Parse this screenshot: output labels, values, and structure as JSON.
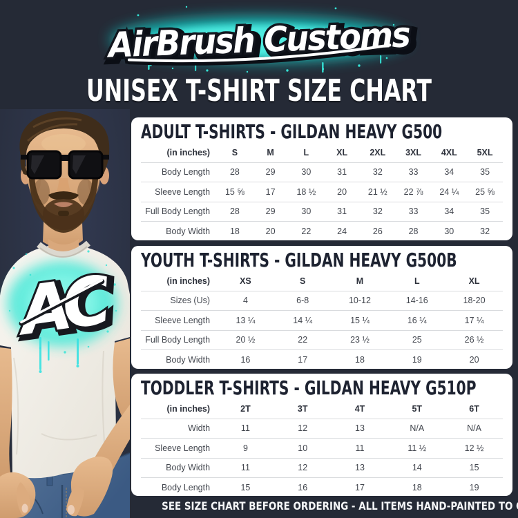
{
  "theme": {
    "bg": "#252a36",
    "panel": "#ffffff",
    "ink": "#1d2230",
    "accent": "#2fe4d0"
  },
  "brand": {
    "logo_text": "AirBrush Customs"
  },
  "title": "UNISEX T-SHIRT SIZE CHART",
  "tables": [
    {
      "title": "ADULT T-SHIRTS - GILDAN HEAVY G500",
      "unit_label": "(in inches)",
      "columns": [
        "S",
        "M",
        "L",
        "XL",
        "2XL",
        "3XL",
        "4XL",
        "5XL"
      ],
      "rows": [
        {
          "label": "Body Length",
          "values": [
            "28",
            "29",
            "30",
            "31",
            "32",
            "33",
            "34",
            "35"
          ]
        },
        {
          "label": "Sleeve Length",
          "values": [
            "15 ⅝",
            "17",
            "18 ½",
            "20",
            "21 ½",
            "22 ⅞",
            "24 ¼",
            "25 ⅝"
          ]
        },
        {
          "label": "Full Body Length",
          "values": [
            "28",
            "29",
            "30",
            "31",
            "32",
            "33",
            "34",
            "35"
          ]
        },
        {
          "label": "Body Width",
          "values": [
            "18",
            "20",
            "22",
            "24",
            "26",
            "28",
            "30",
            "32"
          ]
        }
      ]
    },
    {
      "title": "YOUTH T-SHIRTS - GILDAN HEAVY G500B",
      "unit_label": "(in inches)",
      "columns": [
        "XS",
        "S",
        "M",
        "L",
        "XL"
      ],
      "rows": [
        {
          "label": "Sizes (Us)",
          "values": [
            "4",
            "6-8",
            "10-12",
            "14-16",
            "18-20"
          ]
        },
        {
          "label": "Sleeve Length",
          "values": [
            "13 ¼",
            "14 ¼",
            "15 ¼",
            "16 ¼",
            "17 ¼"
          ]
        },
        {
          "label": "Full Body Length",
          "values": [
            "20 ½",
            "22",
            "23 ½",
            "25",
            "26 ½"
          ]
        },
        {
          "label": "Body Width",
          "values": [
            "16",
            "17",
            "18",
            "19",
            "20"
          ]
        }
      ]
    },
    {
      "title": "TODDLER T-SHIRTS - GILDAN HEAVY G510P",
      "unit_label": "(in inches)",
      "columns": [
        "2T",
        "3T",
        "4T",
        "5T",
        "6T"
      ],
      "rows": [
        {
          "label": "Width",
          "values": [
            "11",
            "12",
            "13",
            "N/A",
            "N/A"
          ]
        },
        {
          "label": "Sleeve Length",
          "values": [
            "9",
            "10",
            "11",
            "11 ½",
            "12 ½"
          ]
        },
        {
          "label": "Body Width",
          "values": [
            "11",
            "12",
            "13",
            "14",
            "15"
          ]
        },
        {
          "label": "Body Length",
          "values": [
            "15",
            "16",
            "17",
            "18",
            "19"
          ]
        }
      ]
    }
  ],
  "footer": {
    "text": "SEE SIZE CHART BEFORE ORDERING - ALL ITEMS HAND-PAINTED TO ORDER"
  }
}
